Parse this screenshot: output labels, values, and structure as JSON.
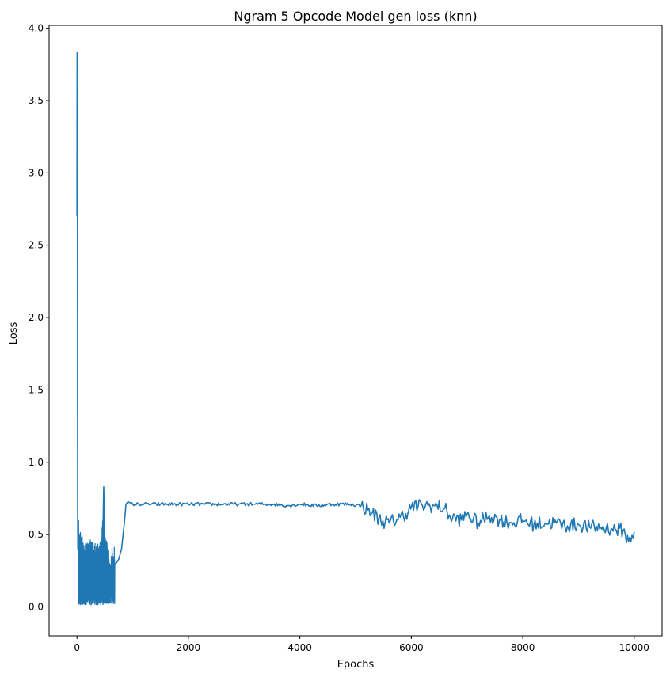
{
  "chart_data": {
    "type": "line",
    "title": "Ngram 5 Opcode Model gen loss (knn)",
    "xlabel": "Epochs",
    "ylabel": "Loss",
    "xlim": [
      -500,
      10500
    ],
    "ylim": [
      -0.2,
      4.02
    ],
    "xticks": [
      0,
      2000,
      4000,
      6000,
      8000,
      10000
    ],
    "xtick_labels": [
      "0",
      "2000",
      "4000",
      "6000",
      "8000",
      "10000"
    ],
    "yticks": [
      0.0,
      0.5,
      1.0,
      1.5,
      2.0,
      2.5,
      3.0,
      3.5,
      4.0
    ],
    "ytick_labels": [
      "0.0",
      "0.5",
      "1.0",
      "1.5",
      "2.0",
      "2.5",
      "3.0",
      "3.5",
      "4.0"
    ],
    "grid": false,
    "color": "#1f77b4",
    "series": [
      {
        "x": [
          0,
          3,
          6,
          9,
          12,
          16,
          20,
          30,
          45,
          60,
          80,
          100,
          150,
          200,
          250,
          300,
          350,
          400,
          440,
          470,
          480,
          500,
          550,
          600,
          650,
          700,
          750,
          800,
          850,
          880,
          900,
          1000,
          1200,
          1500,
          1800,
          2000,
          2300,
          2600,
          2900,
          3200,
          3500,
          3800,
          4000,
          4300,
          4600,
          4900,
          5100,
          5300,
          5450,
          5600,
          5800,
          5950,
          6000,
          6200,
          6400,
          6600,
          6700,
          6900,
          7000,
          7200,
          7400,
          7600,
          7800,
          8000,
          8200,
          8400,
          8600,
          8800,
          9000,
          9200,
          9400,
          9600,
          9800,
          9900,
          10000
        ],
        "y": [
          2.7,
          3.83,
          3.8,
          2.5,
          0.7,
          0.4,
          0.45,
          0.5,
          0.38,
          0.4,
          0.35,
          0.38,
          0.35,
          0.33,
          0.35,
          0.33,
          0.34,
          0.33,
          0.36,
          0.6,
          0.83,
          0.42,
          0.3,
          0.28,
          0.3,
          0.3,
          0.33,
          0.4,
          0.58,
          0.71,
          0.72,
          0.71,
          0.71,
          0.71,
          0.71,
          0.71,
          0.71,
          0.71,
          0.71,
          0.71,
          0.71,
          0.7,
          0.71,
          0.7,
          0.71,
          0.71,
          0.7,
          0.65,
          0.6,
          0.58,
          0.62,
          0.66,
          0.69,
          0.7,
          0.7,
          0.68,
          0.62,
          0.6,
          0.64,
          0.58,
          0.63,
          0.6,
          0.58,
          0.6,
          0.57,
          0.58,
          0.58,
          0.56,
          0.57,
          0.55,
          0.55,
          0.54,
          0.53,
          0.45,
          0.52
        ]
      }
    ]
  }
}
